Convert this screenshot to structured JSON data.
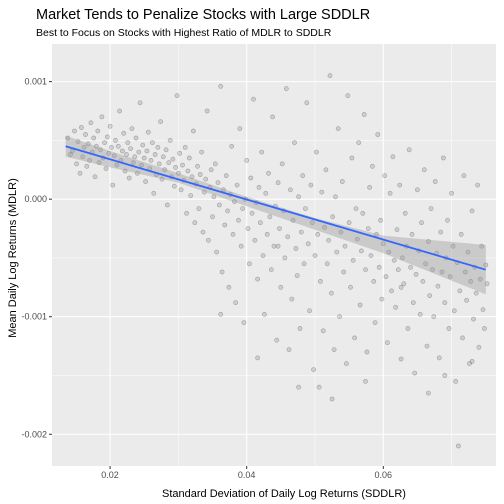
{
  "chart_data": {
    "type": "scatter",
    "title": "Market Tends to Penalize Stocks with Large SDDLR",
    "subtitle": "Best to Focus on Stocks with Highest Ratio of MDLR to SDDLR",
    "xlabel": "Standard Deviation of Daily Log Returns (SDDLR)",
    "ylabel": "Mean Daily Log Returns (MDLR)",
    "xlim": [
      0.0115,
      0.0765
    ],
    "ylim": [
      -0.00227,
      0.00132
    ],
    "x_ticks": [
      0.02,
      0.04,
      0.06
    ],
    "x_tick_labels": [
      "0.02",
      "0.04",
      "0.06"
    ],
    "y_ticks": [
      0.001,
      0.0,
      -0.001,
      -0.002
    ],
    "y_tick_labels": [
      "0.001",
      "0.000",
      "-0.001",
      "-0.002"
    ],
    "grid": true,
    "legend": "none",
    "colors": {
      "panel": "#ebebeb",
      "grid": "#ffffff",
      "points": "#000000",
      "trend_line": "#3366ff",
      "confidence_band": "#999999"
    },
    "trend_line": {
      "method": "linear",
      "x": [
        0.0135,
        0.075
      ],
      "y": [
        0.00045,
        -0.0006
      ]
    },
    "confidence_band": {
      "x": [
        0.0135,
        0.02,
        0.03,
        0.04,
        0.05,
        0.06,
        0.075
      ],
      "lower": [
        0.00036,
        0.00027,
        0.00014,
        -6e-05,
        -0.00026,
        -0.00046,
        -0.00081
      ],
      "upper": [
        0.00054,
        0.00041,
        0.00022,
        2e-05,
        -0.00016,
        -0.00031,
        -0.00039
      ]
    },
    "points": [
      [
        0.0138,
        0.00052
      ],
      [
        0.0142,
        0.00038
      ],
      [
        0.0145,
        0.00041
      ],
      [
        0.0148,
        0.00058
      ],
      [
        0.0151,
        0.0003
      ],
      [
        0.0153,
        0.00049
      ],
      [
        0.0156,
        0.00022
      ],
      [
        0.0158,
        0.00061
      ],
      [
        0.016,
        0.00036
      ],
      [
        0.0162,
        0.00044
      ],
      [
        0.0164,
        0.00055
      ],
      [
        0.0166,
        0.00028
      ],
      [
        0.0168,
        0.00047
      ],
      [
        0.017,
        0.00033
      ],
      [
        0.0172,
        0.00065
      ],
      [
        0.0174,
        0.0004
      ],
      [
        0.0176,
        0.00052
      ],
      [
        0.0178,
        0.00019
      ],
      [
        0.018,
        0.00045
      ],
      [
        0.0182,
        0.00058
      ],
      [
        0.0184,
        0.00031
      ],
      [
        0.0186,
        0.00042
      ],
      [
        0.0188,
        0.0007
      ],
      [
        0.019,
        0.00035
      ],
      [
        0.0192,
        0.00048
      ],
      [
        0.0194,
        0.00026
      ],
      [
        0.0196,
        0.00053
      ],
      [
        0.0198,
        0.00039
      ],
      [
        0.02,
        0.00062
      ],
      [
        0.0202,
        0.00044
      ],
      [
        0.0204,
        0.00012
      ],
      [
        0.0206,
        0.00037
      ],
      [
        0.0208,
        0.0005
      ],
      [
        0.021,
        0.00029
      ],
      [
        0.0212,
        0.00045
      ],
      [
        0.0214,
        0.00075
      ],
      [
        0.0216,
        0.00033
      ],
      [
        0.0218,
        0.00041
      ],
      [
        0.022,
        0.00056
      ],
      [
        0.0222,
        0.00024
      ],
      [
        0.0224,
        0.00038
      ],
      [
        0.0226,
        0.00048
      ],
      [
        0.0228,
        0.00018
      ],
      [
        0.023,
        0.00043
      ],
      [
        0.0232,
        0.0006
      ],
      [
        0.0234,
        0.00031
      ],
      [
        0.0236,
        0.00036
      ],
      [
        0.0238,
        0.00052
      ],
      [
        0.024,
        0.00022
      ],
      [
        0.0242,
        0.0004
      ],
      [
        0.0244,
        0.00082
      ],
      [
        0.0246,
        0.00029
      ],
      [
        0.0248,
        0.00046
      ],
      [
        0.025,
        0.00035
      ],
      [
        0.0252,
        0.00015
      ],
      [
        0.0254,
        0.00041
      ],
      [
        0.0256,
        0.00057
      ],
      [
        0.0258,
        0.00026
      ],
      [
        0.026,
        0.00033
      ],
      [
        0.0262,
        0.00048
      ],
      [
        0.0264,
        5e-05
      ],
      [
        0.0266,
        0.00038
      ],
      [
        0.0268,
        0.00021
      ],
      [
        0.027,
        0.00044
      ],
      [
        0.0272,
        0.0003
      ],
      [
        0.0274,
        0.00066
      ],
      [
        0.0276,
        0.00017
      ],
      [
        0.0278,
        0.00036
      ],
      [
        0.028,
        0.00025
      ],
      [
        0.0282,
        0.00042
      ],
      [
        0.0284,
        -5e-05
      ],
      [
        0.0286,
        0.00031
      ],
      [
        0.0288,
        0.0005
      ],
      [
        0.029,
        0.00019
      ],
      [
        0.0292,
        0.00034
      ],
      [
        0.0294,
        0.00011
      ],
      [
        0.0296,
        0.00027
      ],
      [
        0.0298,
        0.00088
      ],
      [
        0.03,
        0.00022
      ],
      [
        0.0302,
        0.00039
      ],
      [
        0.0304,
        8e-05
      ],
      [
        0.0306,
        0.00029
      ],
      [
        0.0308,
        0.00016
      ],
      [
        0.031,
        0.00044
      ],
      [
        0.0312,
        -0.00012
      ],
      [
        0.0314,
        0.00024
      ],
      [
        0.0316,
        0.00035
      ],
      [
        0.0318,
        3e-05
      ],
      [
        0.032,
        0.00019
      ],
      [
        0.0322,
        0.00058
      ],
      [
        0.0324,
        -0.0002
      ],
      [
        0.0326,
        0.00013
      ],
      [
        0.0328,
        0.00028
      ],
      [
        0.033,
        -8e-05
      ],
      [
        0.0332,
        0.00021
      ],
      [
        0.0334,
        0.0004
      ],
      [
        0.0336,
        -0.00028
      ],
      [
        0.0338,
        6e-05
      ],
      [
        0.034,
        0.00017
      ],
      [
        0.0342,
        0.00075
      ],
      [
        0.0344,
        -0.00035
      ],
      [
        0.0346,
        0.0001
      ],
      [
        0.0348,
        0.00025
      ],
      [
        0.035,
        -0.00015
      ],
      [
        0.0352,
        2e-05
      ],
      [
        0.0354,
        0.0003
      ],
      [
        0.0356,
        -0.00045
      ],
      [
        0.0358,
        0.00014
      ],
      [
        0.036,
        -5e-05
      ],
      [
        0.0362,
        0.00096
      ],
      [
        0.0364,
        -0.00062
      ],
      [
        0.0366,
        8e-05
      ],
      [
        0.0368,
        -0.00022
      ],
      [
        0.037,
        0.0002
      ],
      [
        0.0372,
        -0.0001
      ],
      [
        0.0374,
        -0.00075
      ],
      [
        0.0376,
        4e-05
      ],
      [
        0.0378,
        0.00045
      ],
      [
        0.038,
        -0.0003
      ],
      [
        0.0382,
        -2e-05
      ],
      [
        0.0384,
        -0.00088
      ],
      [
        0.0386,
        0.00012
      ],
      [
        0.0388,
        -0.00018
      ],
      [
        0.039,
        0.0006
      ],
      [
        0.0392,
        -0.0004
      ],
      [
        0.0394,
        -8e-05
      ],
      [
        0.0396,
        -0.00105
      ],
      [
        0.0398,
        0.0
      ],
      [
        0.04,
        0.00033
      ],
      [
        0.0402,
        -0.00025
      ],
      [
        0.0404,
        -0.00055
      ],
      [
        0.0406,
        0.00018
      ],
      [
        0.0408,
        -0.00012
      ],
      [
        0.041,
        0.00085
      ],
      [
        0.0412,
        -0.00035
      ],
      [
        0.0414,
        -3e-05
      ],
      [
        0.0416,
        -0.00068
      ],
      [
        0.0418,
        0.0001
      ],
      [
        0.042,
        -0.0002
      ],
      [
        0.0422,
        0.0004
      ],
      [
        0.0424,
        -0.00048
      ],
      [
        0.0426,
        -0.00098
      ],
      [
        0.0428,
        5e-05
      ],
      [
        0.043,
        -0.0003
      ],
      [
        0.0432,
        0.00022
      ],
      [
        0.0434,
        -0.00015
      ],
      [
        0.0436,
        -0.0006
      ],
      [
        0.0438,
        0.0007
      ],
      [
        0.044,
        -0.0004
      ],
      [
        0.0442,
        -6e-05
      ],
      [
        0.0444,
        -0.0012
      ],
      [
        0.0446,
        0.00014
      ],
      [
        0.0448,
        -0.00025
      ],
      [
        0.045,
        -0.00075
      ],
      [
        0.0452,
        0.0003
      ],
      [
        0.0454,
        -0.0001
      ],
      [
        0.0456,
        -0.0005
      ],
      [
        0.0458,
        0.00094
      ],
      [
        0.046,
        -0.00032
      ],
      [
        0.0462,
        -0.00128
      ],
      [
        0.0464,
        8e-05
      ],
      [
        0.0466,
        -0.00085
      ],
      [
        0.0468,
        -0.00018
      ],
      [
        0.047,
        0.00048
      ],
      [
        0.0472,
        -0.00042
      ],
      [
        0.0474,
        -0.00065
      ],
      [
        0.0476,
        2e-05
      ],
      [
        0.0478,
        -0.0011
      ],
      [
        0.048,
        -0.00028
      ],
      [
        0.0482,
        0.0002
      ],
      [
        0.0484,
        -0.00055
      ],
      [
        0.0486,
        -8e-05
      ],
      [
        0.0488,
        0.00082
      ],
      [
        0.049,
        -0.00038
      ],
      [
        0.0492,
        -0.00095
      ],
      [
        0.0494,
        0.00012
      ],
      [
        0.0496,
        -0.0002
      ],
      [
        0.0498,
        -0.00145
      ],
      [
        0.05,
        -0.00048
      ],
      [
        0.0502,
        0.0004
      ],
      [
        0.0504,
        -0.0003
      ],
      [
        0.0506,
        -0.0016
      ],
      [
        0.0508,
        -0.0007
      ],
      [
        0.051,
        6e-05
      ],
      [
        0.0512,
        -0.00112
      ],
      [
        0.0514,
        -0.00024
      ],
      [
        0.0516,
        0.00025
      ],
      [
        0.0518,
        -0.00055
      ],
      [
        0.052,
        -0.00035
      ],
      [
        0.0522,
        0.00105
      ],
      [
        0.0524,
        -0.0008
      ],
      [
        0.0526,
        -0.00015
      ],
      [
        0.0528,
        -0.00128
      ],
      [
        0.053,
        2e-05
      ],
      [
        0.0532,
        -0.00045
      ],
      [
        0.0534,
        0.0006
      ],
      [
        0.0536,
        -0.001
      ],
      [
        0.0538,
        -0.00028
      ],
      [
        0.054,
        0.00015
      ],
      [
        0.0542,
        -0.00062
      ],
      [
        0.0544,
        -0.0004
      ],
      [
        0.0546,
        -0.0014
      ],
      [
        0.0548,
        0.00088
      ],
      [
        0.055,
        -0.0002
      ],
      [
        0.0552,
        -0.00075
      ],
      [
        0.0554,
        0.00035
      ],
      [
        0.0556,
        -0.00052
      ],
      [
        0.0558,
        -0.00118
      ],
      [
        0.056,
        -8e-05
      ],
      [
        0.0562,
        -0.00034
      ],
      [
        0.0564,
        0.00048
      ],
      [
        0.0566,
        -0.0009
      ],
      [
        0.0568,
        -0.00044
      ],
      [
        0.057,
        -0.00012
      ],
      [
        0.0572,
        0.00072
      ],
      [
        0.0574,
        -0.0006
      ],
      [
        0.0576,
        -0.0013
      ],
      [
        0.0578,
        -0.00025
      ],
      [
        0.058,
        0.0001
      ],
      [
        0.0582,
        -0.00048
      ],
      [
        0.0584,
        0.00028
      ],
      [
        0.0586,
        -0.0007
      ],
      [
        0.0588,
        -0.00105
      ],
      [
        0.059,
        -0.0003
      ],
      [
        0.0592,
        0.00055
      ],
      [
        0.0594,
        -0.00058
      ],
      [
        0.0596,
        -0.00018
      ],
      [
        0.0598,
        -0.00085
      ],
      [
        0.06,
        -0.00038
      ],
      [
        0.0602,
        0.0002
      ],
      [
        0.0604,
        -0.00066
      ],
      [
        0.0606,
        -0.00122
      ],
      [
        0.0608,
        -0.00045
      ],
      [
        0.061,
        5e-05
      ],
      [
        0.0612,
        -0.00078
      ],
      [
        0.0614,
        0.00036
      ],
      [
        0.0616,
        -0.00052
      ],
      [
        0.0618,
        -0.00092
      ],
      [
        0.062,
        -0.00026
      ],
      [
        0.0622,
        -0.0006
      ],
      [
        0.0624,
        0.00012
      ],
      [
        0.0626,
        -0.00136
      ],
      [
        0.0628,
        -0.0005
      ],
      [
        0.063,
        -0.00072
      ],
      [
        0.0632,
        -0.00012
      ],
      [
        0.0634,
        -0.0004
      ],
      [
        0.0636,
        -0.0011
      ],
      [
        0.0638,
        0.00042
      ],
      [
        0.064,
        -0.00058
      ],
      [
        0.0642,
        -0.0003
      ],
      [
        0.0644,
        -0.00088
      ],
      [
        0.0646,
        -0.00148
      ],
      [
        0.0648,
        -0.00064
      ],
      [
        0.065,
        8e-05
      ],
      [
        0.0652,
        -0.00044
      ],
      [
        0.0654,
        -0.00098
      ],
      [
        0.0656,
        -0.0002
      ],
      [
        0.0658,
        -0.0007
      ],
      [
        0.066,
        0.00025
      ],
      [
        0.0662,
        -0.00055
      ],
      [
        0.0664,
        -0.00125
      ],
      [
        0.0666,
        -0.00036
      ],
      [
        0.0668,
        -0.00082
      ],
      [
        0.067,
        -8e-05
      ],
      [
        0.0672,
        -0.0006
      ],
      [
        0.0674,
        -0.001
      ],
      [
        0.0676,
        0.00015
      ],
      [
        0.0678,
        -0.00046
      ],
      [
        0.068,
        -0.00074
      ],
      [
        0.0682,
        -0.00135
      ],
      [
        0.0684,
        -0.00028
      ],
      [
        0.0686,
        -0.00062
      ],
      [
        0.0688,
        0.00035
      ],
      [
        0.069,
        -0.00088
      ],
      [
        0.0692,
        -0.0005
      ],
      [
        0.0694,
        -0.00018
      ],
      [
        0.0696,
        -0.0011
      ],
      [
        0.0698,
        -0.00066
      ],
      [
        0.07,
        5e-05
      ],
      [
        0.0702,
        -0.0004
      ],
      [
        0.0704,
        -0.00095
      ],
      [
        0.0706,
        -0.00155
      ],
      [
        0.0708,
        -0.00054
      ],
      [
        0.071,
        -0.0021
      ],
      [
        0.0712,
        -0.00078
      ],
      [
        0.0714,
        -0.0003
      ],
      [
        0.0716,
        -0.00118
      ],
      [
        0.0718,
        0.0002
      ],
      [
        0.072,
        -0.00062
      ],
      [
        0.0722,
        -0.00086
      ],
      [
        0.0724,
        -0.00045
      ],
      [
        0.0726,
        -0.0014
      ],
      [
        0.0728,
        -0.0007
      ],
      [
        0.073,
        -0.0001
      ],
      [
        0.0732,
        -0.00102
      ],
      [
        0.0734,
        -0.00058
      ],
      [
        0.0736,
        -0.0008
      ],
      [
        0.0738,
        0.00012
      ],
      [
        0.074,
        -0.00126
      ],
      [
        0.0742,
        -0.00068
      ],
      [
        0.0744,
        -0.0004
      ],
      [
        0.0746,
        -0.00094
      ],
      [
        0.0748,
        -0.0011
      ],
      [
        0.075,
        -0.00056
      ],
      [
        0.0752,
        -0.00072
      ],
      [
        0.0362,
        -0.00098
      ],
      [
        0.0416,
        -0.00135
      ],
      [
        0.0446,
        -0.0004
      ],
      [
        0.0476,
        -0.0016
      ],
      [
        0.0525,
        -0.0017
      ],
      [
        0.0574,
        -0.00155
      ],
      [
        0.0626,
        -0.00075
      ],
      [
        0.0666,
        -0.00165
      ],
      [
        0.069,
        -0.0015
      ],
      [
        0.073,
        -0.00138
      ]
    ]
  }
}
